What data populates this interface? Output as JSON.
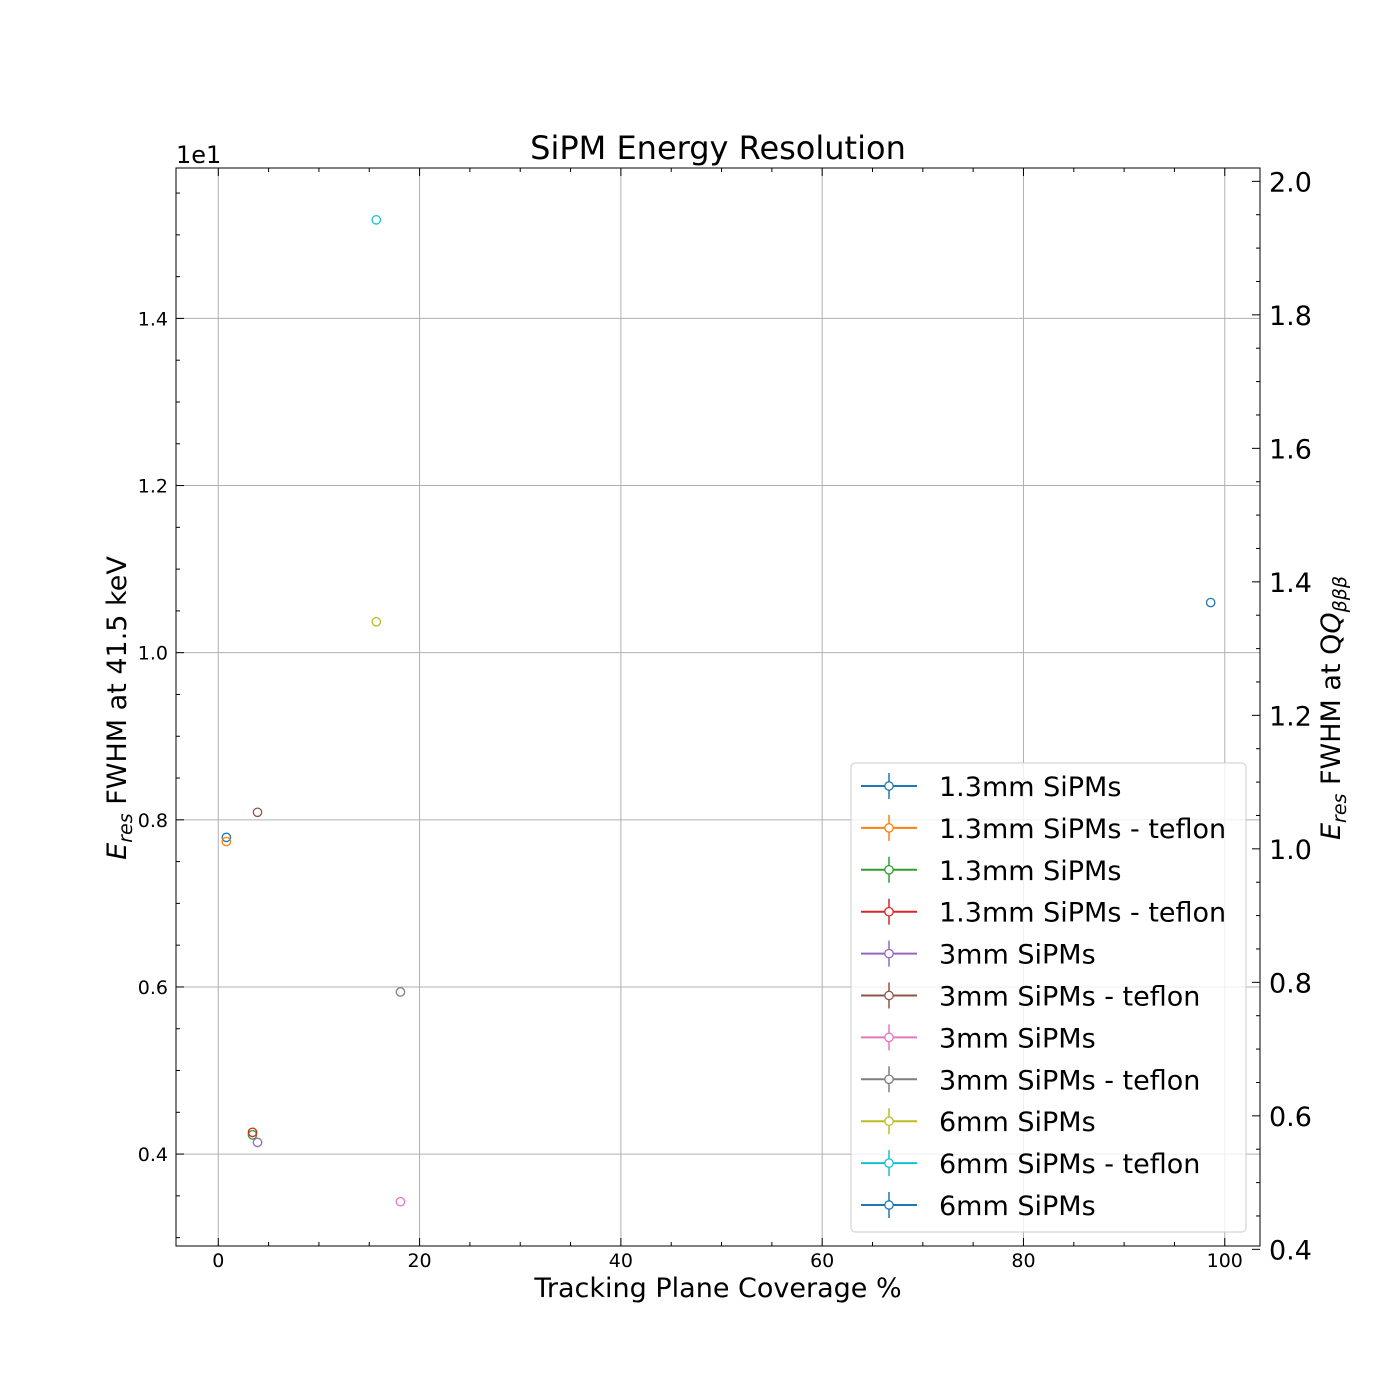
{
  "chart_data": {
    "type": "scatter",
    "title": "SiPM Energy Resolution",
    "xlabel": "Tracking Plane Coverage %",
    "ylabel_left_main": "E",
    "ylabel_left_sub": "res",
    "ylabel_left_rest": " FWHM at 41.5 keV",
    "ylabel_right_main": "E",
    "ylabel_right_sub": "res",
    "ylabel_right_rest": " FWHM at Q",
    "ylabel_right_q_sub": "βββ",
    "offset_text": "1e1",
    "xlim": [
      -4.2,
      103.5
    ],
    "ylim": [
      0.29,
      1.58
    ],
    "ylim_right": [
      0.405,
      2.02
    ],
    "xticks": [
      0,
      20,
      40,
      60,
      80,
      100
    ],
    "yticks": [
      0.4,
      0.6,
      0.8,
      1.0,
      1.2,
      1.4
    ],
    "yticks_right": [
      0.4,
      0.6,
      0.8,
      1.0,
      1.2,
      1.4,
      1.6,
      1.8,
      2.0
    ],
    "xtick_labels": [
      "0",
      "20",
      "40",
      "60",
      "80",
      "100"
    ],
    "ytick_labels": [
      "0.4",
      "0.6",
      "0.8",
      "1.0",
      "1.2",
      "1.4"
    ],
    "ytick_labels_right": [
      "0.4",
      "0.6",
      "0.8",
      "1.0",
      "1.2",
      "1.4",
      "1.6",
      "1.8",
      "2.0"
    ],
    "grid": true,
    "legend_position": "lower-right",
    "series": [
      {
        "name": "1.3mm SiPMs",
        "color": "#1f77b4",
        "x": 0.8,
        "y": 0.779
      },
      {
        "name": "1.3mm SiPMs - teflon",
        "color": "#ff7f0e",
        "x": 0.8,
        "y": 0.774
      },
      {
        "name": "1.3mm SiPMs",
        "color": "#2ca02c",
        "x": 3.4,
        "y": 0.423
      },
      {
        "name": "1.3mm SiPMs - teflon",
        "color": "#d62728",
        "x": 3.4,
        "y": 0.426
      },
      {
        "name": "3mm SiPMs",
        "color": "#9467bd",
        "x": 3.9,
        "y": 0.414
      },
      {
        "name": "3mm SiPMs - teflon",
        "color": "#8c564b",
        "x": 3.9,
        "y": 0.809
      },
      {
        "name": "3mm SiPMs",
        "color": "#e377c2",
        "x": 18.1,
        "y": 0.343
      },
      {
        "name": "3mm SiPMs - teflon",
        "color": "#7f7f7f",
        "x": 18.1,
        "y": 0.594
      },
      {
        "name": "6mm SiPMs",
        "color": "#bcbd22",
        "x": 15.7,
        "y": 1.037
      },
      {
        "name": "6mm SiPMs - teflon",
        "color": "#17becf",
        "x": 15.7,
        "y": 1.518
      },
      {
        "name": "6mm SiPMs",
        "color": "#1f77b4",
        "x": 98.6,
        "y": 1.06
      }
    ]
  }
}
